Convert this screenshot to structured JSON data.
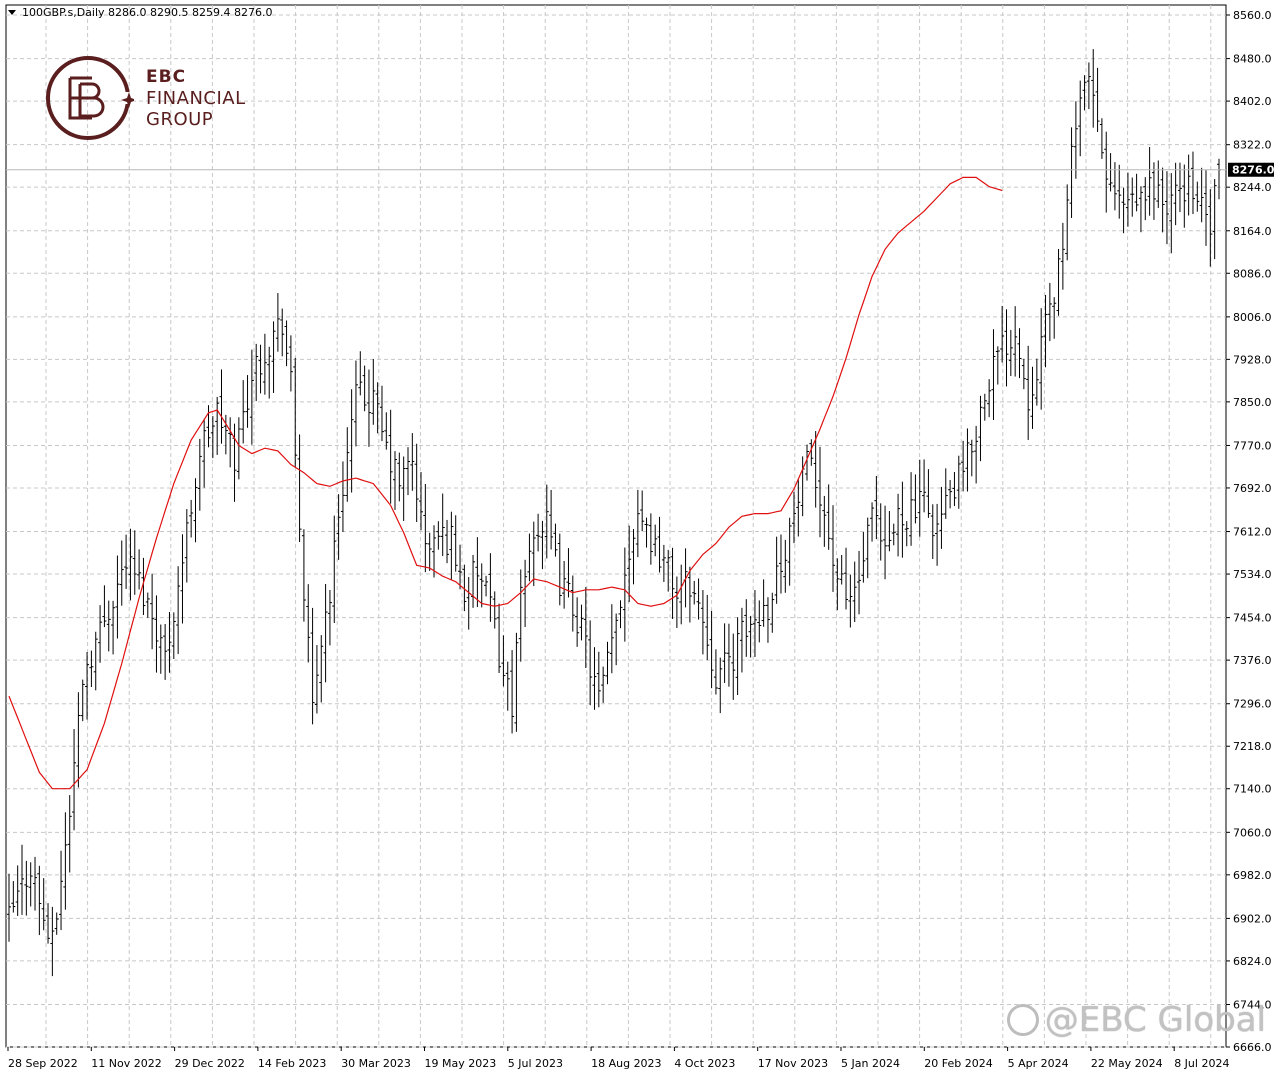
{
  "header": {
    "symbol_line": "100GBP.s,Daily  8286.0 8290.5 8259.4 8276.0"
  },
  "logo": {
    "line1": "EBC",
    "line2": "FINANCIAL",
    "line3": "GROUP",
    "color": "#5a1e1e"
  },
  "watermark": {
    "text": "@EBC Global"
  },
  "colors": {
    "bars": "#000000",
    "moving_average": "#e01010",
    "grid": "#c8c8c8",
    "price_tag_bg": "#000000",
    "price_tag_text": "#ffffff",
    "current_price_line": "#b8b8b8"
  },
  "chart_data": {
    "type": "ohlc",
    "title": "100GBP.s,Daily",
    "ylim": [
      6666.0,
      8560.0
    ],
    "y_ticks": [
      "8560.0",
      "8480.0",
      "8402.0",
      "8322.0",
      "8244.0",
      "8164.0",
      "8086.0",
      "8006.0",
      "7928.0",
      "7850.0",
      "7770.0",
      "7692.0",
      "7612.0",
      "7534.0",
      "7454.0",
      "7376.0",
      "7296.0",
      "7218.0",
      "7140.0",
      "7060.0",
      "6982.0",
      "6902.0",
      "6824.0",
      "6744.0",
      "6666.0"
    ],
    "x_ticks": [
      "28 Sep 2022",
      "11 Nov 2022",
      "29 Dec 2022",
      "14 Feb 2023",
      "30 Mar 2023",
      "19 May 2023",
      "5 Jul 2023",
      "18 Aug 2023",
      "4 Oct 2023",
      "17 Nov 2023",
      "5 Jan 2024",
      "20 Feb 2024",
      "5 Apr 2024",
      "22 May 2024",
      "8 Jul 2024"
    ],
    "current_price": "8276.0",
    "last_bar": {
      "open": 8286.0,
      "high": 8290.5,
      "low": 8259.4,
      "close": 8276.0
    },
    "close_path": [
      [
        0,
        6900
      ],
      [
        5,
        7000
      ],
      [
        8,
        6900
      ],
      [
        10,
        6850
      ],
      [
        14,
        7100
      ],
      [
        17,
        7350
      ],
      [
        22,
        7450
      ],
      [
        27,
        7560
      ],
      [
        30,
        7520
      ],
      [
        34,
        7440
      ],
      [
        36,
        7380
      ],
      [
        40,
        7560
      ],
      [
        44,
        7760
      ],
      [
        48,
        7830
      ],
      [
        52,
        7750
      ],
      [
        56,
        7900
      ],
      [
        60,
        7960
      ],
      [
        63,
        8000
      ],
      [
        65,
        7880
      ],
      [
        68,
        7500
      ],
      [
        70,
        7280
      ],
      [
        72,
        7420
      ],
      [
        74,
        7500
      ],
      [
        76,
        7650
      ],
      [
        80,
        7860
      ],
      [
        84,
        7850
      ],
      [
        87,
        7760
      ],
      [
        90,
        7700
      ],
      [
        93,
        7740
      ],
      [
        96,
        7580
      ],
      [
        99,
        7600
      ],
      [
        102,
        7600
      ],
      [
        105,
        7500
      ],
      [
        108,
        7540
      ],
      [
        111,
        7470
      ],
      [
        114,
        7350
      ],
      [
        116,
        7300
      ],
      [
        118,
        7480
      ],
      [
        121,
        7620
      ],
      [
        124,
        7620
      ],
      [
        127,
        7520
      ],
      [
        130,
        7480
      ],
      [
        133,
        7400
      ],
      [
        136,
        7300
      ],
      [
        139,
        7400
      ],
      [
        142,
        7540
      ],
      [
        145,
        7660
      ],
      [
        148,
        7600
      ],
      [
        151,
        7560
      ],
      [
        154,
        7500
      ],
      [
        157,
        7520
      ],
      [
        160,
        7450
      ],
      [
        163,
        7350
      ],
      [
        166,
        7370
      ],
      [
        169,
        7420
      ],
      [
        172,
        7450
      ],
      [
        175,
        7480
      ],
      [
        178,
        7560
      ],
      [
        181,
        7640
      ],
      [
        184,
        7730
      ],
      [
        187,
        7690
      ],
      [
        190,
        7560
      ],
      [
        193,
        7480
      ],
      [
        196,
        7520
      ],
      [
        199,
        7640
      ],
      [
        202,
        7560
      ],
      [
        205,
        7640
      ],
      [
        208,
        7650
      ],
      [
        211,
        7660
      ],
      [
        214,
        7620
      ],
      [
        217,
        7680
      ],
      [
        220,
        7720
      ],
      [
        223,
        7800
      ],
      [
        226,
        7900
      ],
      [
        229,
        7950
      ],
      [
        232,
        7980
      ],
      [
        235,
        7860
      ],
      [
        238,
        7950
      ],
      [
        241,
        8050
      ],
      [
        244,
        8200
      ],
      [
        246,
        8380
      ],
      [
        248,
        8440
      ],
      [
        250,
        8400
      ],
      [
        252,
        8300
      ],
      [
        255,
        8220
      ],
      [
        258,
        8200
      ],
      [
        261,
        8220
      ],
      [
        264,
        8250
      ],
      [
        267,
        8200
      ],
      [
        270,
        8240
      ],
      [
        273,
        8250
      ],
      [
        275,
        8200
      ],
      [
        277,
        8170
      ],
      [
        279,
        8276
      ]
    ],
    "ma_path": [
      [
        0,
        7310
      ],
      [
        3,
        7250
      ],
      [
        7,
        7170
      ],
      [
        10,
        7140
      ],
      [
        14,
        7140
      ],
      [
        18,
        7175
      ],
      [
        22,
        7260
      ],
      [
        26,
        7370
      ],
      [
        30,
        7490
      ],
      [
        34,
        7600
      ],
      [
        38,
        7700
      ],
      [
        42,
        7780
      ],
      [
        46,
        7830
      ],
      [
        48,
        7835
      ],
      [
        50,
        7810
      ],
      [
        53,
        7770
      ],
      [
        56,
        7755
      ],
      [
        59,
        7765
      ],
      [
        62,
        7760
      ],
      [
        65,
        7735
      ],
      [
        68,
        7720
      ],
      [
        71,
        7700
      ],
      [
        74,
        7695
      ],
      [
        77,
        7705
      ],
      [
        80,
        7710
      ],
      [
        84,
        7700
      ],
      [
        88,
        7660
      ],
      [
        91,
        7610
      ],
      [
        94,
        7550
      ],
      [
        97,
        7545
      ],
      [
        100,
        7530
      ],
      [
        103,
        7520
      ],
      [
        106,
        7500
      ],
      [
        109,
        7480
      ],
      [
        112,
        7475
      ],
      [
        115,
        7480
      ],
      [
        118,
        7500
      ],
      [
        121,
        7525
      ],
      [
        124,
        7520
      ],
      [
        127,
        7510
      ],
      [
        130,
        7500
      ],
      [
        133,
        7505
      ],
      [
        136,
        7505
      ],
      [
        139,
        7510
      ],
      [
        142,
        7505
      ],
      [
        145,
        7480
      ],
      [
        148,
        7475
      ],
      [
        151,
        7480
      ],
      [
        154,
        7495
      ],
      [
        157,
        7540
      ],
      [
        160,
        7570
      ],
      [
        163,
        7590
      ],
      [
        166,
        7620
      ],
      [
        169,
        7640
      ],
      [
        172,
        7645
      ],
      [
        175,
        7645
      ],
      [
        178,
        7650
      ],
      [
        181,
        7690
      ],
      [
        184,
        7745
      ],
      [
        187,
        7800
      ],
      [
        190,
        7860
      ],
      [
        193,
        7930
      ],
      [
        196,
        8010
      ],
      [
        199,
        8080
      ],
      [
        202,
        8130
      ],
      [
        205,
        8160
      ],
      [
        208,
        8180
      ],
      [
        211,
        8200
      ],
      [
        214,
        8225
      ],
      [
        217,
        8250
      ],
      [
        220,
        8262
      ],
      [
        223,
        8262
      ],
      [
        226,
        8245
      ],
      [
        229,
        8238
      ]
    ],
    "n_bars": 280
  }
}
